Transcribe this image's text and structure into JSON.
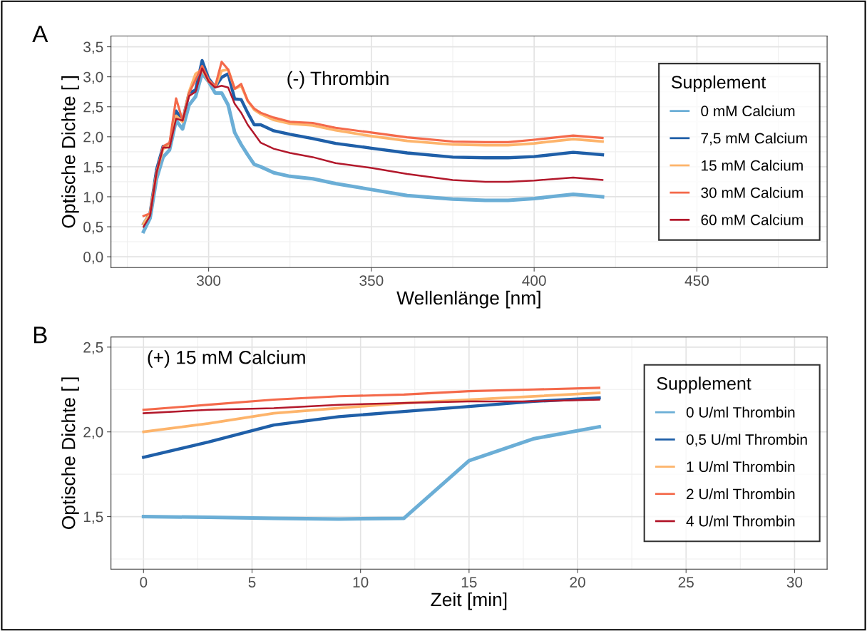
{
  "chart_data": [
    {
      "type": "line",
      "xlabel": "Wellenlänge [nm]",
      "ylabel": "Optische Dichte [ ]",
      "legend_title": "Supplement",
      "legend": "right",
      "grid": true,
      "annotations": [
        "A",
        "(-) Thrombin"
      ],
      "xlim": [
        270,
        490
      ],
      "xticks": [
        300,
        350,
        400,
        450
      ],
      "ylim": [
        -0.18,
        3.68
      ],
      "yticks": [
        {
          "value": 0,
          "label": "0,0"
        },
        {
          "value": 0.5,
          "label": "0,5"
        },
        {
          "value": 1,
          "label": "1,0"
        },
        {
          "value": 1.5,
          "label": "1,5"
        },
        {
          "value": 2,
          "label": "2,0"
        },
        {
          "value": 2.5,
          "label": "2,5"
        },
        {
          "value": 3,
          "label": "3,0"
        },
        {
          "value": 3.5,
          "label": "3,5"
        }
      ],
      "series": [
        {
          "name": "0 mM Calcium",
          "color": "#6baed6",
          "x": [
            280,
            282,
            284,
            286,
            288,
            290,
            292,
            294,
            296,
            298,
            300,
            302,
            304,
            306,
            308,
            310,
            312,
            314,
            316,
            320,
            325,
            332,
            339,
            350,
            361,
            375,
            385,
            392,
            400,
            412,
            421
          ],
          "values": [
            0.42,
            0.64,
            1.3,
            1.66,
            1.78,
            2.27,
            2.13,
            2.53,
            2.67,
            3.06,
            2.92,
            2.73,
            2.73,
            2.53,
            2.07,
            1.87,
            1.7,
            1.54,
            1.5,
            1.4,
            1.34,
            1.3,
            1.22,
            1.12,
            1.02,
            0.96,
            0.94,
            0.94,
            0.97,
            1.04,
            1.0
          ]
        },
        {
          "name": "7,5 mM Calcium",
          "color": "#1f5fa8",
          "x": [
            280,
            282,
            284,
            286,
            288,
            290,
            292,
            294,
            296,
            298,
            300,
            302,
            304,
            306,
            308,
            310,
            312,
            314,
            316,
            320,
            325,
            332,
            339,
            350,
            361,
            375,
            385,
            392,
            400,
            412,
            421
          ],
          "values": [
            0.55,
            0.72,
            1.45,
            1.84,
            1.85,
            2.43,
            2.27,
            2.73,
            2.78,
            3.27,
            2.97,
            2.83,
            2.99,
            3.05,
            2.63,
            2.62,
            2.4,
            2.2,
            2.2,
            2.1,
            2.04,
            1.97,
            1.89,
            1.81,
            1.73,
            1.66,
            1.65,
            1.65,
            1.67,
            1.74,
            1.7
          ]
        },
        {
          "name": "15 mM Calcium",
          "color": "#fdb46b",
          "x": [
            280,
            282,
            284,
            286,
            288,
            290,
            292,
            294,
            296,
            298,
            300,
            302,
            304,
            306,
            308,
            310,
            312,
            314,
            316,
            320,
            325,
            332,
            339,
            350,
            361,
            375,
            385,
            392,
            400,
            412,
            421
          ],
          "values": [
            0.55,
            0.72,
            1.4,
            1.8,
            1.85,
            2.35,
            2.25,
            2.75,
            3.05,
            3.12,
            2.92,
            2.83,
            3.1,
            3.12,
            2.8,
            2.85,
            2.6,
            2.45,
            2.38,
            2.28,
            2.22,
            2.19,
            2.11,
            2.01,
            1.93,
            1.87,
            1.86,
            1.86,
            1.89,
            1.96,
            1.92
          ]
        },
        {
          "name": "30 mM Calcium",
          "color": "#f4694a",
          "x": [
            280,
            282,
            284,
            286,
            288,
            290,
            292,
            294,
            296,
            298,
            300,
            302,
            304,
            306,
            308,
            310,
            312,
            314,
            316,
            320,
            325,
            332,
            339,
            350,
            361,
            375,
            385,
            392,
            400,
            412,
            421
          ],
          "values": [
            0.68,
            0.72,
            1.4,
            1.84,
            1.9,
            2.64,
            2.27,
            2.73,
            2.95,
            3.18,
            2.95,
            2.84,
            3.25,
            3.12,
            2.8,
            2.88,
            2.6,
            2.47,
            2.4,
            2.32,
            2.25,
            2.23,
            2.15,
            2.07,
            1.99,
            1.92,
            1.91,
            1.91,
            1.95,
            2.02,
            1.98
          ]
        },
        {
          "name": "60 mM Calcium",
          "color": "#b2182b",
          "x": [
            280,
            282,
            284,
            286,
            288,
            290,
            292,
            294,
            296,
            298,
            300,
            302,
            304,
            306,
            308,
            310,
            312,
            314,
            316,
            320,
            325,
            332,
            339,
            350,
            361,
            375,
            385,
            392,
            400,
            412,
            421
          ],
          "values": [
            0.5,
            0.68,
            1.4,
            1.82,
            1.82,
            2.3,
            2.27,
            2.68,
            2.75,
            3.14,
            2.92,
            2.82,
            2.85,
            2.82,
            2.55,
            2.4,
            2.2,
            2.05,
            1.9,
            1.8,
            1.73,
            1.66,
            1.56,
            1.48,
            1.38,
            1.28,
            1.25,
            1.25,
            1.27,
            1.32,
            1.28
          ]
        }
      ]
    },
    {
      "type": "line",
      "xlabel": "Zeit [min]",
      "ylabel": "Optische Dichte [ ]",
      "legend_title": "Supplement",
      "legend": "right",
      "grid": true,
      "annotations": [
        "B",
        "(+) 15 mM Calcium"
      ],
      "x": [
        0,
        3,
        6,
        9,
        12,
        15,
        18,
        21
      ],
      "xlim": [
        -1.5,
        31.5
      ],
      "xticks": [
        0,
        5,
        10,
        15,
        20,
        25,
        30
      ],
      "ylim": [
        1.19,
        2.56
      ],
      "yticks": [
        {
          "value": 1.5,
          "label": "1,5"
        },
        {
          "value": 2.0,
          "label": "2,0"
        },
        {
          "value": 2.5,
          "label": "2,5"
        }
      ],
      "series": [
        {
          "name": "0 U/ml Thrombin",
          "color": "#6baed6",
          "values": [
            1.5,
            1.496,
            1.49,
            1.486,
            1.49,
            1.83,
            1.96,
            2.03
          ]
        },
        {
          "name": "0,5 U/ml Thrombin",
          "color": "#1f5fa8",
          "values": [
            1.85,
            1.94,
            2.04,
            2.09,
            2.12,
            2.15,
            2.18,
            2.2
          ]
        },
        {
          "name": "1 U/ml Thrombin",
          "color": "#fdb46b",
          "values": [
            2.0,
            2.05,
            2.11,
            2.14,
            2.17,
            2.19,
            2.21,
            2.23
          ]
        },
        {
          "name": "2 U/ml Thrombin",
          "color": "#f4694a",
          "values": [
            2.13,
            2.16,
            2.19,
            2.21,
            2.22,
            2.24,
            2.25,
            2.26
          ]
        },
        {
          "name": "4 U/ml Thrombin",
          "color": "#b2182b",
          "values": [
            2.11,
            2.13,
            2.14,
            2.16,
            2.17,
            2.18,
            2.18,
            2.19
          ]
        }
      ]
    }
  ]
}
